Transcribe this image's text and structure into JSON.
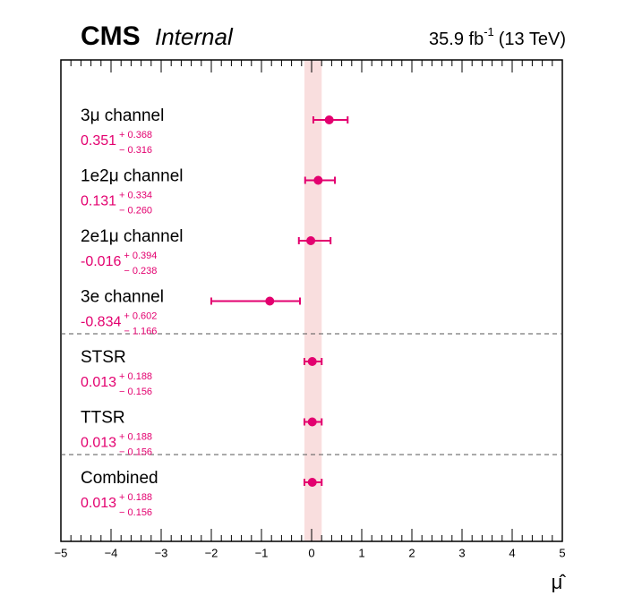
{
  "chart_data": {
    "type": "forest",
    "experiment": "CMS",
    "status": "Internal",
    "lumi": "35.9 fb",
    "lumi_exp": "-1",
    "energy": "(13 TeV)",
    "x_label": "μ̂",
    "categories": [
      "3μ channel",
      "1e2μ channel",
      "2e1μ channel",
      "3e channel",
      "STSR",
      "TTSR",
      "Combined"
    ],
    "values": [
      0.351,
      0.131,
      -0.016,
      -0.834,
      0.013,
      0.013,
      0.013
    ],
    "err_plus": [
      {
        "value": 0.368,
        "label": "+ 0.368"
      },
      {
        "value": 0.334,
        "label": "+ 0.334"
      },
      {
        "value": 0.394,
        "label": "+ 0.394"
      },
      {
        "value": 0.602,
        "label": "+ 0.602"
      },
      {
        "value": 0.188,
        "label": "+ 0.188"
      },
      {
        "value": 0.188,
        "label": "+ 0.188"
      },
      {
        "value": 0.188,
        "label": "+ 0.188"
      }
    ],
    "err_minus": [
      {
        "value": -0.316,
        "label": "− 0.316"
      },
      {
        "value": -0.26,
        "label": "− 0.260"
      },
      {
        "value": -0.238,
        "label": "− 0.238"
      },
      {
        "value": -1.166,
        "label": "− 1.166"
      },
      {
        "value": -0.156,
        "label": "− 0.156"
      },
      {
        "value": -0.156,
        "label": "− 0.156"
      },
      {
        "value": -0.156,
        "label": "− 0.156"
      }
    ],
    "color": "#e3006f",
    "band": [
      -0.143,
      0.201
    ],
    "band_color": "#f9dede",
    "xlim": [
      -5,
      5
    ],
    "xticks": [
      {
        "value": -5,
        "label": "−5"
      },
      {
        "value": -4,
        "label": "−4"
      },
      {
        "value": -3,
        "label": "−3"
      },
      {
        "value": -2,
        "label": "−2"
      },
      {
        "value": -1,
        "label": "−1"
      },
      0,
      1,
      2,
      3,
      4,
      5
    ]
  }
}
